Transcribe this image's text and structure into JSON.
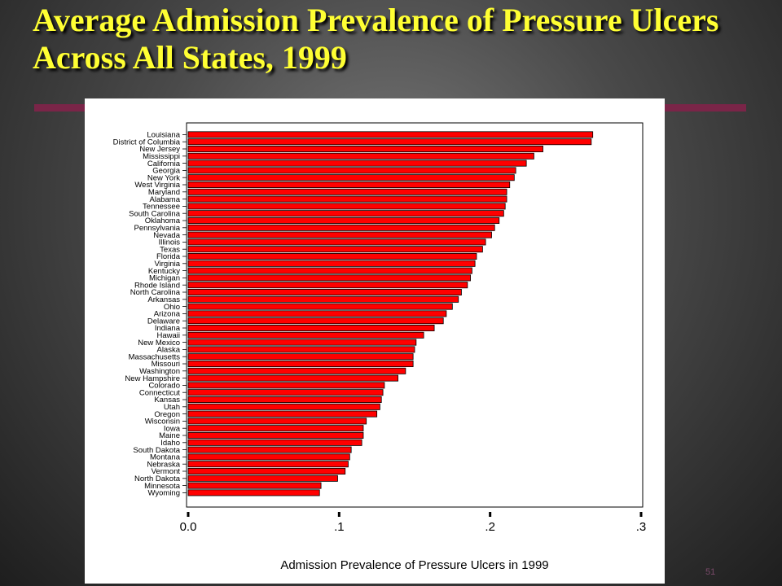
{
  "slide": {
    "title": "Average Admission Prevalence of Pressure Ulcers Across All States, 1999",
    "page_number": "51",
    "colors": {
      "title": "#ffff33",
      "accent": "#7a2548",
      "bar": "#ff0000"
    }
  },
  "chart_data": {
    "type": "bar",
    "orientation": "horizontal",
    "title": "",
    "xlabel": "Admission Prevalence of Pressure Ulcers in 1999",
    "ylabel": "",
    "xlim": [
      0,
      0.3
    ],
    "xticks": [
      0,
      0.1,
      0.2,
      0.3
    ],
    "xtick_labels": [
      "0.0",
      ".1",
      ".2",
      ".3"
    ],
    "grid": false,
    "legend": "none",
    "categories": [
      "Louisiana",
      "District of Columbia",
      "New Jersey",
      "Mississippi",
      "California",
      "Georgia",
      "New York",
      "West Virginia",
      "Maryland",
      "Alabama",
      "Tennessee",
      "South Carolina",
      "Oklahoma",
      "Pennsylvania",
      "Nevada",
      "Illinois",
      "Texas",
      "Florida",
      "Virginia",
      "Kentucky",
      "Michigan",
      "Rhode Island",
      "North Carolina",
      "Arkansas",
      "Ohio",
      "Arizona",
      "Delaware",
      "Indiana",
      "Hawaii",
      "New Mexico",
      "Alaska",
      "Massachusetts",
      "Missouri",
      "Washington",
      "New Hampshire",
      "Colorado",
      "Connecticut",
      "Kansas",
      "Utah",
      "Oregon",
      "Wisconsin",
      "Iowa",
      "Maine",
      "Idaho",
      "South Dakota",
      "Montana",
      "Nebraska",
      "Vermont",
      "North Dakota",
      "Minnesota",
      "Wyoming"
    ],
    "values": [
      0.268,
      0.267,
      0.235,
      0.229,
      0.224,
      0.217,
      0.216,
      0.213,
      0.211,
      0.211,
      0.21,
      0.209,
      0.206,
      0.203,
      0.201,
      0.197,
      0.195,
      0.191,
      0.19,
      0.188,
      0.187,
      0.185,
      0.181,
      0.179,
      0.175,
      0.171,
      0.169,
      0.163,
      0.156,
      0.151,
      0.15,
      0.149,
      0.149,
      0.144,
      0.139,
      0.13,
      0.129,
      0.128,
      0.127,
      0.125,
      0.118,
      0.116,
      0.116,
      0.115,
      0.108,
      0.107,
      0.106,
      0.104,
      0.099,
      0.088,
      0.087
    ]
  }
}
